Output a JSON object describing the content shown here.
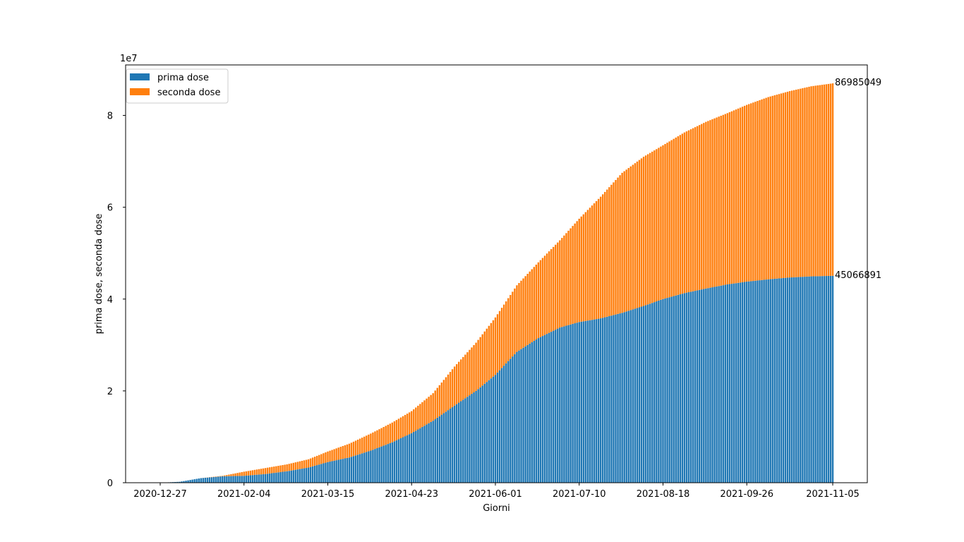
{
  "chart_data": {
    "type": "bar",
    "stacked": true,
    "xlabel": "Giorni",
    "ylabel": "prima dose, seconda dose",
    "y_offset_text": "1e7",
    "y_multiplier": 10000000,
    "ylim": [
      0,
      91000000
    ],
    "yticks": [
      0,
      20000000,
      40000000,
      60000000,
      80000000
    ],
    "ytick_labels": [
      "0",
      "2",
      "4",
      "6",
      "8"
    ],
    "x_start": "2020-12-27",
    "x_end": "2021-11-05",
    "xtick_labels": [
      "2020-12-27",
      "2021-02-04",
      "2021-03-15",
      "2021-04-23",
      "2021-06-01",
      "2021-07-10",
      "2021-08-18",
      "2021-09-26",
      "2021-11-05"
    ],
    "legend": {
      "location": "upper-left",
      "entries": [
        "prima dose",
        "seconda dose"
      ]
    },
    "annotations": [
      {
        "text": "86985049",
        "value": 86985049
      },
      {
        "text": "45066891",
        "value": 45066891
      }
    ],
    "grid": false,
    "series": [
      {
        "name": "prima dose",
        "color": "#1f77b4",
        "control_points": [
          [
            "2020-12-27",
            0
          ],
          [
            "2021-01-05",
            200000
          ],
          [
            "2021-01-15",
            1000000
          ],
          [
            "2021-01-25",
            1400000
          ],
          [
            "2021-02-04",
            1500000
          ],
          [
            "2021-02-14",
            1900000
          ],
          [
            "2021-02-24",
            2500000
          ],
          [
            "2021-03-06",
            3300000
          ],
          [
            "2021-03-15",
            4500000
          ],
          [
            "2021-03-25",
            5500000
          ],
          [
            "2021-04-04",
            7000000
          ],
          [
            "2021-04-14",
            8800000
          ],
          [
            "2021-04-23",
            10800000
          ],
          [
            "2021-05-03",
            13500000
          ],
          [
            "2021-05-13",
            16800000
          ],
          [
            "2021-05-23",
            20000000
          ],
          [
            "2021-06-01",
            23500000
          ],
          [
            "2021-06-11",
            28500000
          ],
          [
            "2021-06-21",
            31500000
          ],
          [
            "2021-07-01",
            33800000
          ],
          [
            "2021-07-10",
            35000000
          ],
          [
            "2021-07-20",
            35800000
          ],
          [
            "2021-07-30",
            37000000
          ],
          [
            "2021-08-09",
            38500000
          ],
          [
            "2021-08-18",
            40000000
          ],
          [
            "2021-08-28",
            41300000
          ],
          [
            "2021-09-07",
            42300000
          ],
          [
            "2021-09-17",
            43200000
          ],
          [
            "2021-09-26",
            43800000
          ],
          [
            "2021-10-06",
            44300000
          ],
          [
            "2021-10-16",
            44700000
          ],
          [
            "2021-10-26",
            44950000
          ],
          [
            "2021-11-05",
            45066891
          ]
        ]
      },
      {
        "name": "seconda dose",
        "color": "#ff7f0e",
        "control_points": [
          [
            "2020-12-27",
            0
          ],
          [
            "2021-01-15",
            0
          ],
          [
            "2021-01-25",
            100000
          ],
          [
            "2021-02-04",
            900000
          ],
          [
            "2021-02-14",
            1300000
          ],
          [
            "2021-02-24",
            1500000
          ],
          [
            "2021-03-06",
            1800000
          ],
          [
            "2021-03-15",
            2300000
          ],
          [
            "2021-03-25",
            3000000
          ],
          [
            "2021-04-04",
            3700000
          ],
          [
            "2021-04-14",
            4300000
          ],
          [
            "2021-04-23",
            4800000
          ],
          [
            "2021-05-03",
            6000000
          ],
          [
            "2021-05-13",
            8500000
          ],
          [
            "2021-05-23",
            10500000
          ],
          [
            "2021-06-01",
            12500000
          ],
          [
            "2021-06-11",
            14500000
          ],
          [
            "2021-06-21",
            16500000
          ],
          [
            "2021-07-01",
            19000000
          ],
          [
            "2021-07-10",
            22500000
          ],
          [
            "2021-07-20",
            26500000
          ],
          [
            "2021-07-30",
            30500000
          ],
          [
            "2021-08-09",
            32500000
          ],
          [
            "2021-08-18",
            33500000
          ],
          [
            "2021-08-28",
            35000000
          ],
          [
            "2021-09-07",
            36300000
          ],
          [
            "2021-09-17",
            37300000
          ],
          [
            "2021-09-26",
            38500000
          ],
          [
            "2021-10-06",
            39700000
          ],
          [
            "2021-10-16",
            40600000
          ],
          [
            "2021-10-26",
            41400000
          ],
          [
            "2021-11-05",
            41918158
          ]
        ]
      }
    ]
  }
}
